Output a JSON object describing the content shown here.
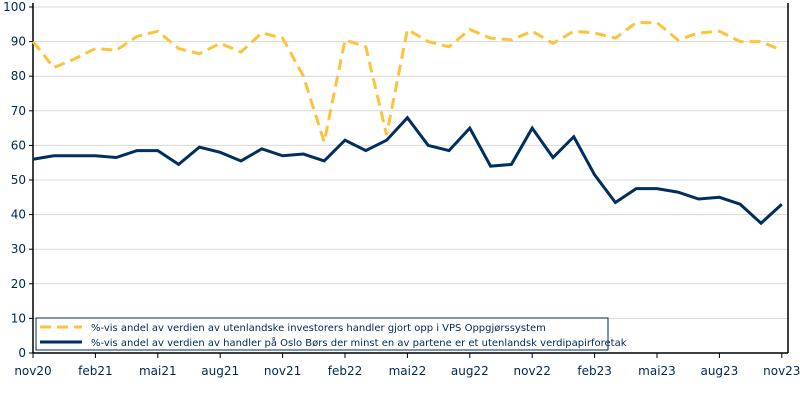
{
  "chart_data": {
    "type": "line",
    "title": "",
    "xlabel": "",
    "ylabel": "",
    "ylim": [
      0,
      100
    ],
    "yticks": [
      0,
      10,
      20,
      30,
      40,
      50,
      60,
      70,
      80,
      90,
      100
    ],
    "xtick_labels": [
      "nov20",
      "feb21",
      "mai21",
      "aug21",
      "nov21",
      "feb22",
      "mai22",
      "aug22",
      "nov22",
      "feb23",
      "mai23",
      "aug23",
      "nov23"
    ],
    "x": [
      "nov20",
      "des20",
      "jan21",
      "feb21",
      "mar21",
      "apr21",
      "mai21",
      "jun21",
      "jul21",
      "aug21",
      "sep21",
      "okt21",
      "nov21",
      "des21",
      "jan22",
      "feb22",
      "mar22",
      "apr22",
      "mai22",
      "jun22",
      "jul22",
      "aug22",
      "sep22",
      "okt22",
      "nov22",
      "des22",
      "jan23",
      "feb23",
      "mar23",
      "apr23",
      "mai23",
      "jun23",
      "jul23",
      "aug23",
      "sep23",
      "okt23",
      "nov23"
    ],
    "grid": true,
    "legend_position": "bottom-left",
    "series": [
      {
        "name": "%-vis andel av verdien av utenlandske investorers handler gjort opp i VPS Oppgjørssystem",
        "color": "#FFC23B",
        "style": "dashed",
        "values": [
          90,
          82.5,
          85,
          88,
          87.5,
          91.5,
          93,
          88,
          86.5,
          89.5,
          87,
          92.5,
          91,
          80,
          61,
          90.5,
          88.5,
          63,
          93.5,
          90,
          88.5,
          93.5,
          91,
          90.5,
          93,
          89.5,
          93,
          92.5,
          91,
          95.5,
          95.5,
          90.5,
          92.5,
          93,
          90,
          90,
          87.5
        ]
      },
      {
        "name": "%-vis andel av verdien av handler på Oslo Børs der minst en av partene er et utenlandsk verdipapirforetak",
        "color": "#002F5F",
        "style": "solid",
        "values": [
          56,
          57,
          57,
          57,
          56.5,
          58.5,
          58.5,
          54.5,
          59.5,
          58,
          55.5,
          59,
          57,
          57.5,
          55.5,
          61.5,
          58.5,
          61.5,
          68,
          60,
          58.5,
          65,
          54,
          54.5,
          65,
          56.5,
          62.5,
          51.5,
          43.5,
          47.5,
          47.5,
          46.5,
          44.5,
          45,
          43,
          37.5,
          43
        ]
      }
    ]
  }
}
